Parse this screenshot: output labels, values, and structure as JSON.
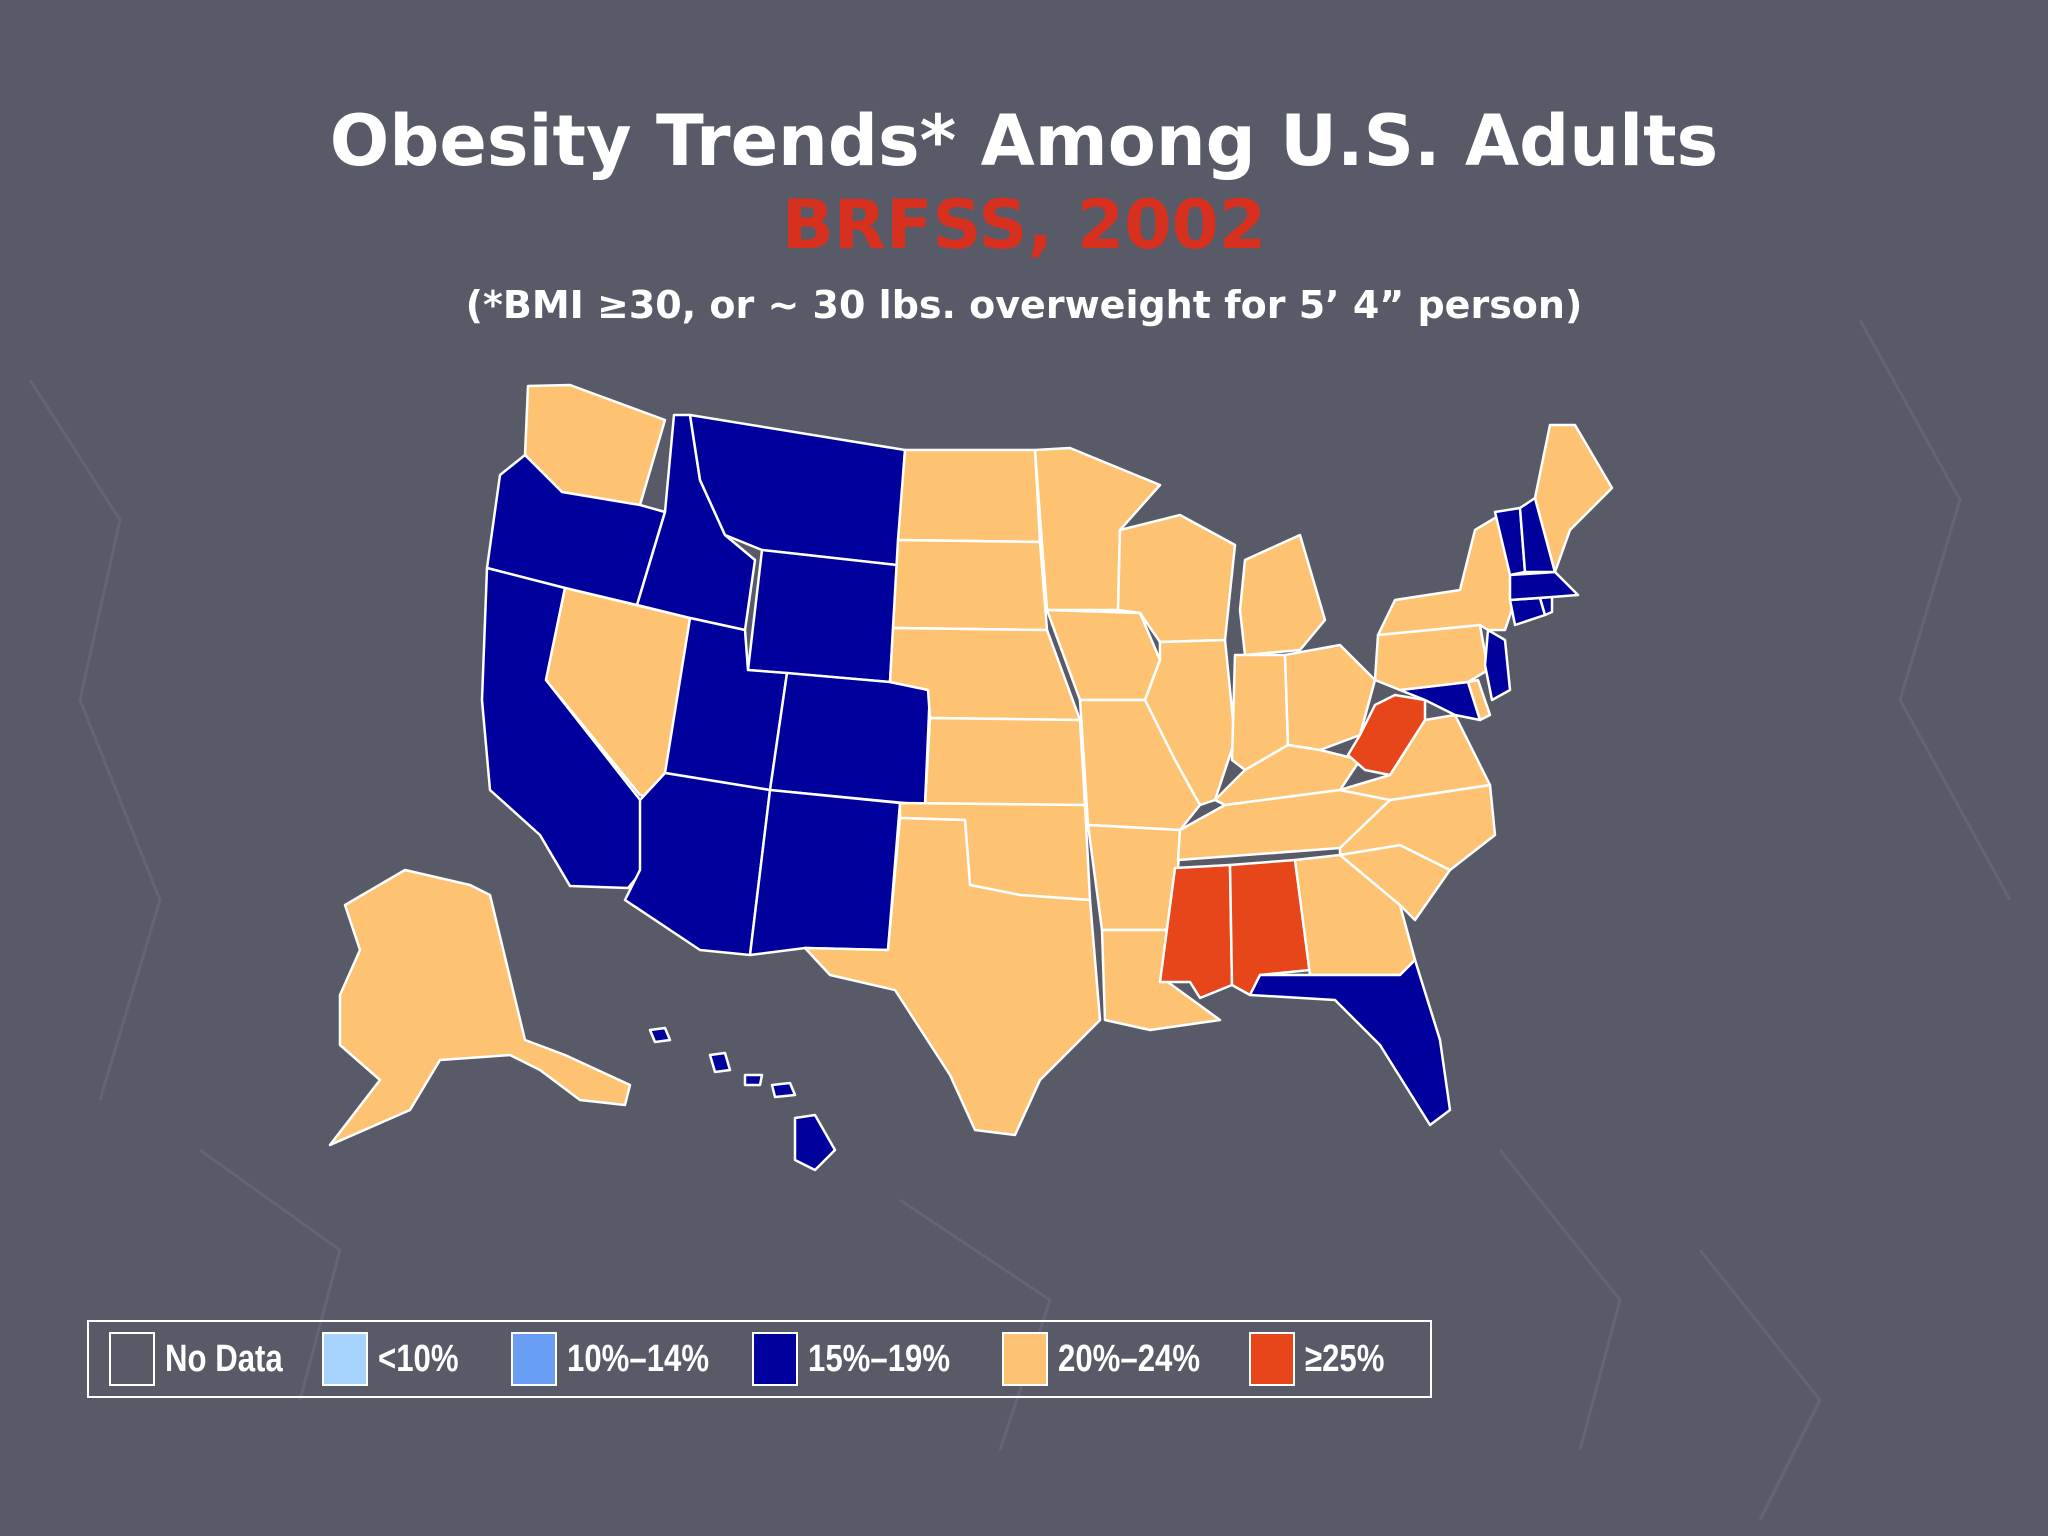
{
  "title": "Obesity Trends* Among U.S. Adults",
  "subtitle": "BRFSS, 2002",
  "note": "(*BMI ≥30, or ~ 30 lbs. overweight for 5’ 4” person)",
  "colors": {
    "background": "#585a68",
    "subtitle": "#d8301f",
    "no_data": "#585a68",
    "lt10": "#a6d4ff",
    "10_14": "#6a9ef5",
    "15_19": "#00009c",
    "20_24": "#fdc373",
    "ge25": "#e6461a"
  },
  "legend": [
    {
      "label": "No Data",
      "color": "no_data"
    },
    {
      "label": "<10%",
      "color": "lt10"
    },
    {
      "label": "10%–14%",
      "color": "10_14"
    },
    {
      "label": "15%–19%",
      "color": "15_19"
    },
    {
      "label": "20%–24%",
      "color": "20_24"
    },
    {
      "label": "≥25%",
      "color": "ge25"
    }
  ],
  "states": {
    "WA": "20_24",
    "OR": "15_19",
    "CA": "15_19",
    "NV": "20_24",
    "ID": "15_19",
    "MT": "15_19",
    "WY": "15_19",
    "UT": "15_19",
    "CO": "15_19",
    "AZ": "15_19",
    "NM": "15_19",
    "ND": "20_24",
    "SD": "20_24",
    "NE": "20_24",
    "KS": "20_24",
    "OK": "20_24",
    "TX": "20_24",
    "MN": "20_24",
    "IA": "20_24",
    "MO": "20_24",
    "AR": "20_24",
    "LA": "20_24",
    "WI": "20_24",
    "IL": "20_24",
    "MI": "20_24",
    "IN": "20_24",
    "OH": "20_24",
    "KY": "20_24",
    "TN": "20_24",
    "MS": "ge25",
    "AL": "ge25",
    "GA": "20_24",
    "FL": "15_19",
    "SC": "20_24",
    "NC": "20_24",
    "VA": "20_24",
    "WV": "ge25",
    "MD": "15_19",
    "DE": "20_24",
    "PA": "20_24",
    "NJ": "15_19",
    "NY": "20_24",
    "CT": "15_19",
    "RI": "15_19",
    "MA": "15_19",
    "VT": "15_19",
    "NH": "15_19",
    "ME": "20_24",
    "AK": "20_24",
    "HI": "15_19"
  }
}
